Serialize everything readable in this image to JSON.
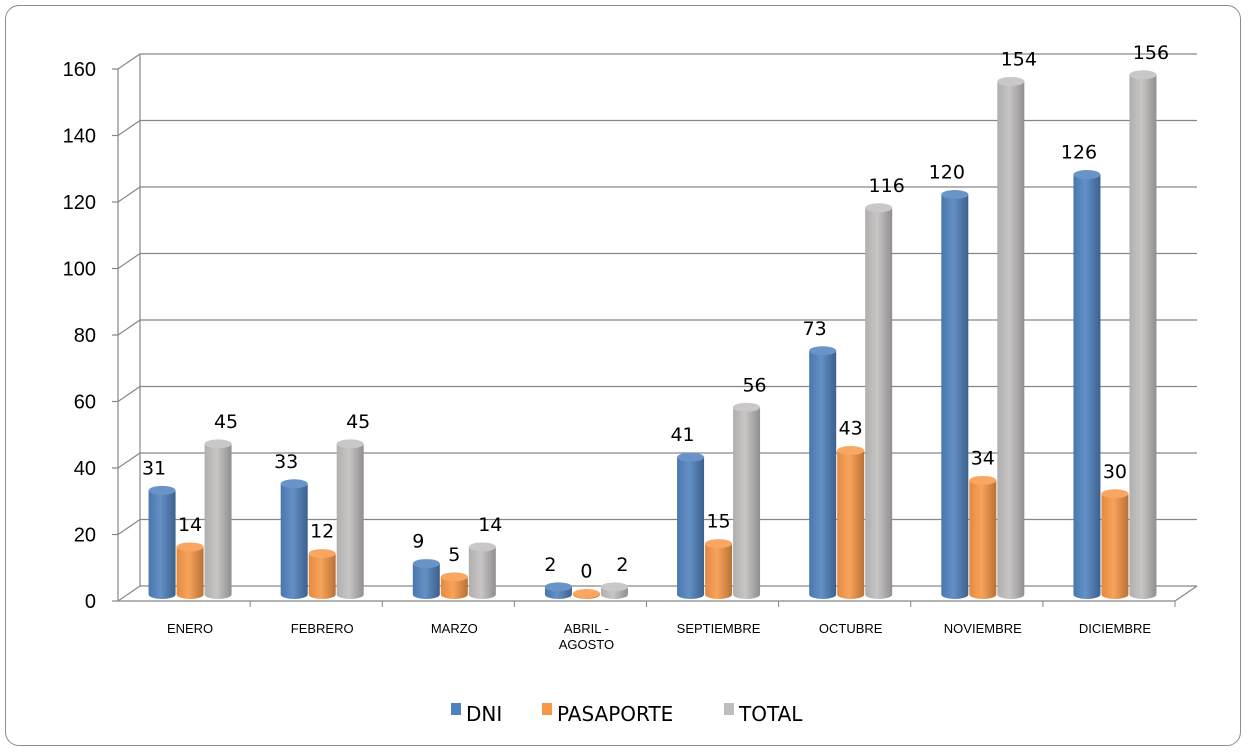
{
  "chart_data": {
    "type": "bar",
    "title": "",
    "xlabel": "",
    "ylabel": "",
    "ylim": [
      0,
      160
    ],
    "yticks": [
      0,
      20,
      40,
      60,
      80,
      100,
      120,
      140,
      160
    ],
    "grid": true,
    "legend_position": "bottom",
    "categories": [
      [
        "ENERO"
      ],
      [
        "FEBRERO"
      ],
      [
        "MARZO"
      ],
      [
        "ABRIL -",
        "AGOSTO"
      ],
      [
        "SEPTIEMBRE"
      ],
      [
        "OCTUBRE"
      ],
      [
        "NOVIEMBRE"
      ],
      [
        "DICIEMBRE"
      ]
    ],
    "series": [
      {
        "name": "DNI",
        "color": "#4f81bd",
        "values": [
          31,
          33,
          9,
          2,
          41,
          73,
          120,
          126
        ]
      },
      {
        "name": "PASAPORTE",
        "color": "#f79646",
        "values": [
          14,
          12,
          5,
          0,
          15,
          43,
          34,
          30
        ]
      },
      {
        "name": "TOTAL",
        "color": "#c0bdbd",
        "values": [
          45,
          45,
          14,
          2,
          56,
          116,
          154,
          156
        ]
      }
    ]
  }
}
